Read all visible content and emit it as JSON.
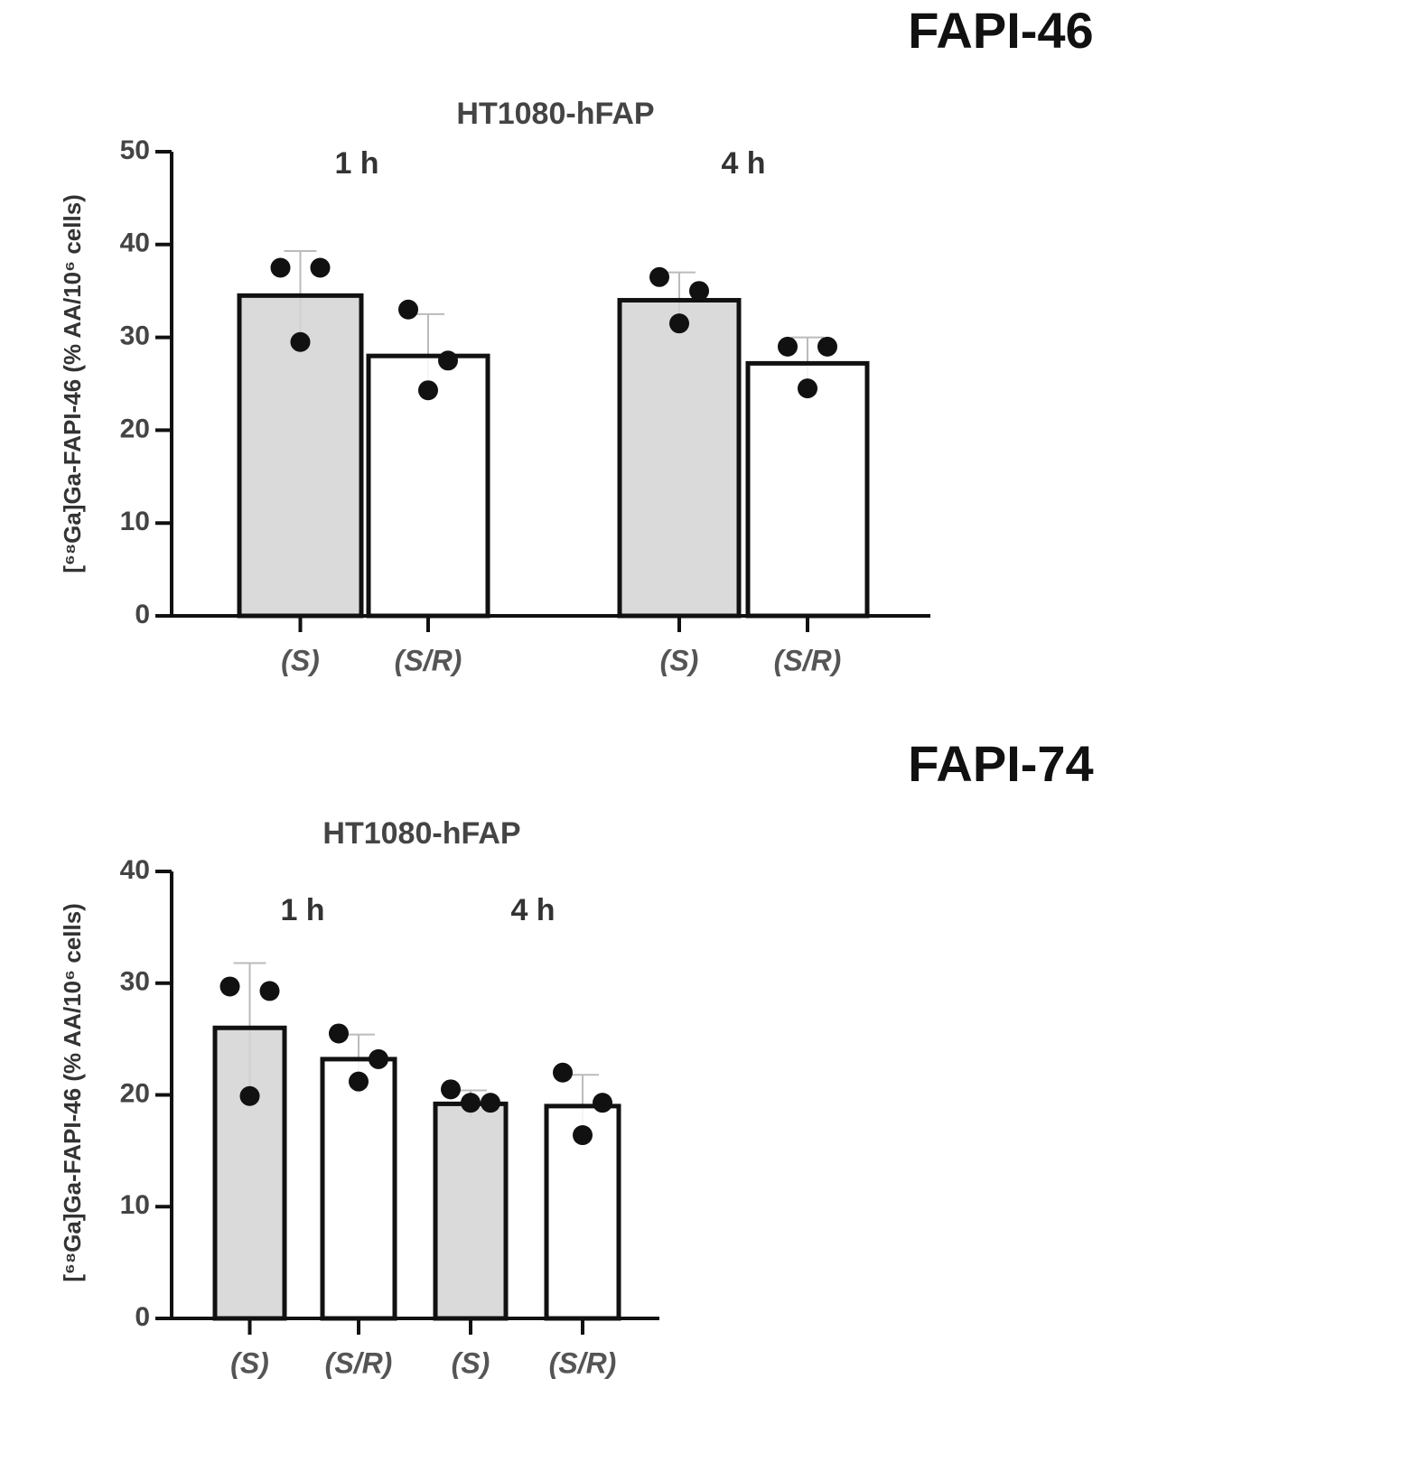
{
  "chart_data": [
    {
      "type": "bar",
      "title": "FAPI-46",
      "subtitle": "HT1080-hFAP",
      "y_label": "[⁶⁸Ga]Ga-FAPI-46 (% AA/10⁶ cells)",
      "groups": [
        "1 h",
        "4 h"
      ],
      "categories": [
        "(S)",
        "(S/R)",
        "(S)",
        "(S/R)"
      ],
      "values": [
        34.5,
        28,
        34,
        27.2
      ],
      "errors": [
        4.8,
        4.5,
        3,
        2.8
      ],
      "points": [
        [
          37.5,
          37.5,
          29.5
        ],
        [
          33,
          27.5,
          24.3
        ],
        [
          36.5,
          35,
          31.5
        ],
        [
          29,
          29,
          24.5
        ]
      ],
      "colors": [
        "#d3d3d3",
        "#ffffff",
        "#d3d3d3",
        "#ffffff"
      ],
      "ylim": [
        0,
        50
      ],
      "yticks": [
        0,
        10,
        20,
        30,
        40,
        50
      ]
    },
    {
      "type": "bar",
      "title": "FAPI-74",
      "subtitle": "HT1080-hFAP",
      "y_label": "[⁶⁸Ga]Ga-FAPI-46 (% AA/10⁶ cells)",
      "groups": [
        "1 h",
        "4 h"
      ],
      "categories": [
        "(S)",
        "(S/R)",
        "(S)",
        "(S/R)"
      ],
      "values": [
        26,
        23.2,
        19.2,
        19
      ],
      "errors": [
        5.8,
        2.2,
        1.2,
        2.8
      ],
      "points": [
        [
          29.7,
          29.3,
          19.9
        ],
        [
          25.5,
          23.2,
          21.2
        ],
        [
          20.5,
          19.3,
          19.3
        ],
        [
          22,
          19.3,
          16.4
        ]
      ],
      "colors": [
        "#d3d3d3",
        "#ffffff",
        "#d3d3d3",
        "#ffffff"
      ],
      "ylim": [
        0,
        40
      ],
      "yticks": [
        0,
        10,
        20,
        30,
        40
      ]
    }
  ]
}
